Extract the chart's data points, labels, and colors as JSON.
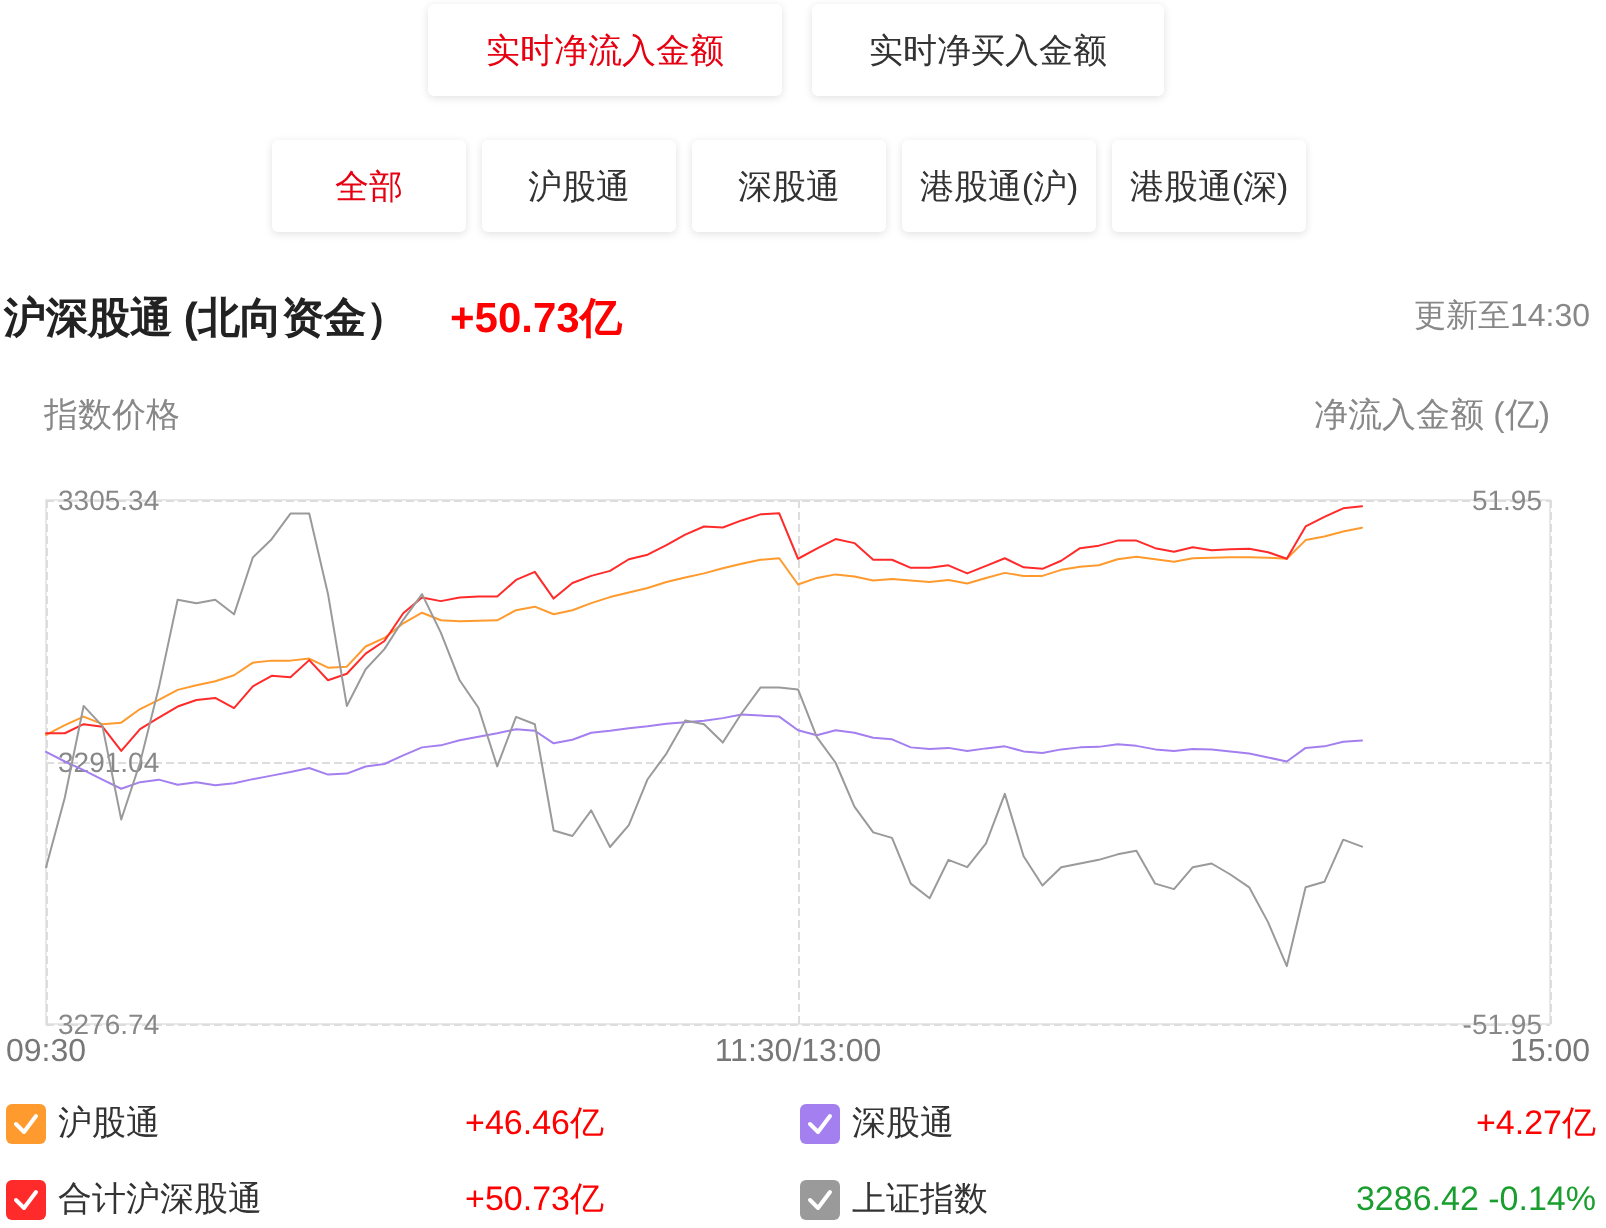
{
  "chart_data": {
    "type": "line",
    "title": "沪深股通 (北向资金）",
    "subtitle": "+50.73亿",
    "ylabel": "指数价格",
    "y2label": "净流入金额 (亿)",
    "annotations": [
      "实时净流入金额",
      "实时净买入金额",
      "全部",
      "沪股通",
      "深股通",
      "港股通(沪)",
      "港股通(深)",
      "更新至14:30",
      "+46.46亿",
      "+4.27亿",
      "+50.73亿",
      "3286.42 -0.14%"
    ],
    "categories": [
      "09:30",
      null,
      null,
      null,
      null,
      null,
      null,
      null,
      null,
      null,
      null,
      null,
      null,
      null,
      null,
      null,
      null,
      null,
      null,
      null,
      null,
      null,
      null,
      null,
      null,
      null,
      null,
      null,
      null,
      null,
      null,
      null,
      null,
      null,
      null,
      null,
      null,
      null,
      null,
      null,
      "11:30/13:00",
      null,
      null,
      null,
      null,
      null,
      null,
      null,
      null,
      null,
      null,
      null,
      null,
      null,
      null,
      null,
      null,
      null,
      null,
      null,
      null,
      null,
      null,
      null,
      null,
      null,
      null,
      null,
      null,
      null,
      null,
      null,
      null,
      null,
      null,
      null,
      null,
      null,
      null,
      null,
      "15:00"
    ],
    "ylim": [
      3276.74,
      3305.34
    ],
    "yticks": [
      3276.74,
      3291.04,
      3305.34
    ],
    "y2lim": [
      -51.95,
      51.95
    ],
    "y2ticks": [
      -51.95,
      51.95
    ],
    "grid": true,
    "legend": "bottom",
    "series": [
      {
        "name": "沪股通",
        "color": "#ff9a2e",
        "axis": "y2",
        "values": [
          5.4,
          7.3,
          9.0,
          7.5,
          7.8,
          10.5,
          12.3,
          14.3,
          15.2,
          16.0,
          17.2,
          19.7,
          20.1,
          20.1,
          20.5,
          18.7,
          18.9,
          22.9,
          24.6,
          27.5,
          29.6,
          28.1,
          27.9,
          28.0,
          28.1,
          30.1,
          30.8,
          29.3,
          30.1,
          31.5,
          32.7,
          33.6,
          34.5,
          35.7,
          36.6,
          37.4,
          38.4,
          39.3,
          40.1,
          40.4,
          35.2,
          36.5,
          37.2,
          36.8,
          36.0,
          36.3,
          36.0,
          35.7,
          36.1,
          35.4,
          36.5,
          37.5,
          36.9,
          36.9,
          38.1,
          38.7,
          39.0,
          40.2,
          40.7,
          40.2,
          39.7,
          40.4,
          40.5,
          40.6,
          40.6,
          40.5,
          40.3,
          44.0,
          44.7,
          45.7,
          46.46,
          null,
          null,
          null,
          null,
          null,
          null,
          null,
          null,
          null,
          null
        ]
      },
      {
        "name": "深股通",
        "color": "#a47ff0",
        "axis": "y2",
        "values": [
          2.0,
          0.1,
          -1.6,
          -3.5,
          -5.3,
          -4.0,
          -3.5,
          -4.5,
          -4.0,
          -4.6,
          -4.2,
          -3.4,
          -2.7,
          -2.0,
          -1.2,
          -2.5,
          -2.3,
          -0.9,
          -0.4,
          1.3,
          2.9,
          3.3,
          4.3,
          5.0,
          5.7,
          6.5,
          6.2,
          3.7,
          4.4,
          5.8,
          6.2,
          6.7,
          7.1,
          7.6,
          7.9,
          8.2,
          8.7,
          9.4,
          9.2,
          9.0,
          6.3,
          5.3,
          6.3,
          5.8,
          4.8,
          4.5,
          2.9,
          2.6,
          2.8,
          2.2,
          2.7,
          3.1,
          2.1,
          1.8,
          2.5,
          2.9,
          3.0,
          3.5,
          3.2,
          2.5,
          2.2,
          2.6,
          2.5,
          2.1,
          1.7,
          0.9,
          0.1,
          2.8,
          3.1,
          4.0,
          4.27,
          null,
          null,
          null,
          null,
          null,
          null,
          null,
          null,
          null,
          null
        ]
      },
      {
        "name": "合计沪深股通",
        "color": "#ff2a2a",
        "axis": "y2",
        "values": [
          5.7,
          5.7,
          7.5,
          7.0,
          2.2,
          6.5,
          8.8,
          11.0,
          12.3,
          12.7,
          10.7,
          15.0,
          17.1,
          16.8,
          20.2,
          16.2,
          17.5,
          21.5,
          24.0,
          29.5,
          32.6,
          31.9,
          32.6,
          32.8,
          32.8,
          36.1,
          37.7,
          32.4,
          35.5,
          36.9,
          37.9,
          40.2,
          41.1,
          43.0,
          45.1,
          46.7,
          46.5,
          47.9,
          49.1,
          49.3,
          40.3,
          42.3,
          44.2,
          43.4,
          40.1,
          40.1,
          38.5,
          38.5,
          39.0,
          37.4,
          38.9,
          40.4,
          38.6,
          38.3,
          39.9,
          42.4,
          42.9,
          43.9,
          43.9,
          42.4,
          41.7,
          42.6,
          42.0,
          42.2,
          42.3,
          41.6,
          40.3,
          46.7,
          48.6,
          50.3,
          50.73,
          null,
          null,
          null,
          null,
          null,
          null,
          null,
          null,
          null,
          null
        ]
      },
      {
        "name": "上证指数",
        "color": "#9a9a9a",
        "values": [
          3285.3,
          3289.1,
          3294.1,
          3293.0,
          3287.9,
          3291.0,
          3295.1,
          3299.9,
          3299.7,
          3299.9,
          3299.1,
          3302.2,
          3303.2,
          3304.6,
          3304.6,
          3300.2,
          3294.1,
          3296.1,
          3297.2,
          3298.8,
          3300.2,
          3298.1,
          3295.5,
          3294.0,
          3290.8,
          3293.5,
          3293.1,
          3287.3,
          3287.0,
          3288.4,
          3286.4,
          3287.6,
          3290.1,
          3291.5,
          3293.3,
          3293.1,
          3292.1,
          3293.7,
          3295.1,
          3295.1,
          3295.0,
          3292.4,
          3291.0,
          3288.6,
          3287.2,
          3286.9,
          3284.4,
          3283.6,
          3285.7,
          3285.3,
          3286.6,
          3289.3,
          3285.9,
          3284.3,
          3285.3,
          3285.5,
          3285.7,
          3286.0,
          3286.2,
          3284.4,
          3284.1,
          3285.3,
          3285.5,
          3284.9,
          3284.2,
          3282.3,
          3279.9,
          3284.2,
          3284.5,
          3286.8,
          3286.42,
          null,
          null,
          null,
          null,
          null,
          null,
          null,
          null,
          null,
          null
        ]
      }
    ]
  }
}
